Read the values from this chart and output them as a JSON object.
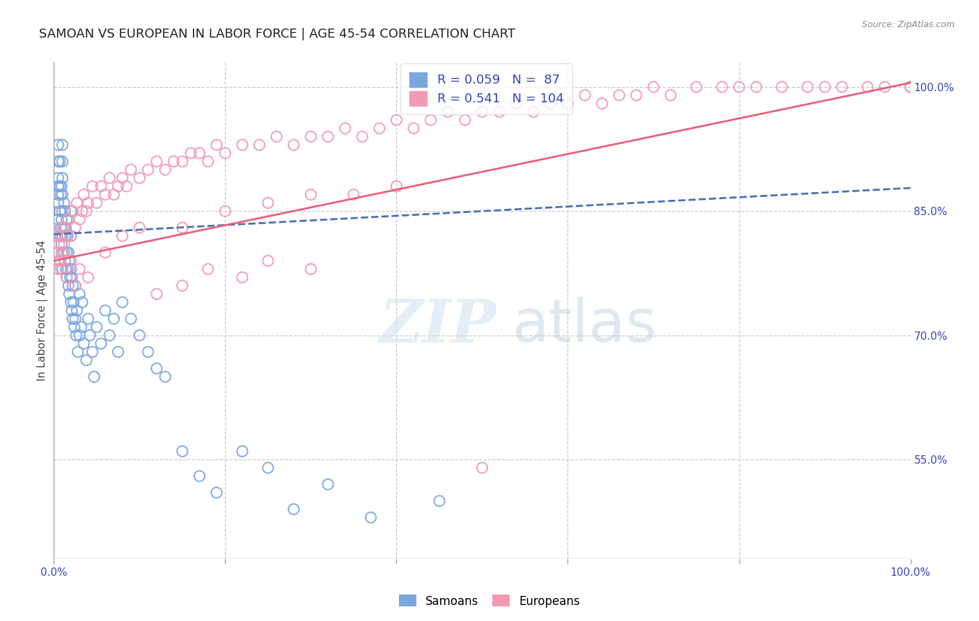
{
  "title": "SAMOAN VS EUROPEAN IN LABOR FORCE | AGE 45-54 CORRELATION CHART",
  "source": "Source: ZipAtlas.com",
  "ylabel": "In Labor Force | Age 45-54",
  "y_tick_labels": [
    "55.0%",
    "70.0%",
    "85.0%",
    "100.0%"
  ],
  "y_tick_values": [
    0.55,
    0.7,
    0.85,
    1.0
  ],
  "ylim": [
    0.43,
    1.03
  ],
  "xlim": [
    0.0,
    1.0
  ],
  "samoan_R": 0.059,
  "samoan_N": 87,
  "european_R": 0.541,
  "european_N": 104,
  "samoan_color": "#7ba7e0",
  "european_color": "#f299b4",
  "samoan_line_color": "#4a6fb5",
  "european_line_color": "#e8607a",
  "legend_samoan_label": "Samoans",
  "legend_european_label": "Europeans",
  "watermark_zip": "ZIP",
  "watermark_atlas": "atlas",
  "background_color": "#ffffff",
  "title_fontsize": 13,
  "axis_label_fontsize": 11,
  "tick_label_fontsize": 11,
  "samoan_x": [
    0.005,
    0.005,
    0.005,
    0.005,
    0.005,
    0.005,
    0.005,
    0.007,
    0.007,
    0.007,
    0.007,
    0.008,
    0.008,
    0.009,
    0.009,
    0.009,
    0.01,
    0.01,
    0.01,
    0.01,
    0.01,
    0.01,
    0.01,
    0.012,
    0.012,
    0.012,
    0.013,
    0.013,
    0.013,
    0.014,
    0.014,
    0.015,
    0.015,
    0.015,
    0.016,
    0.016,
    0.017,
    0.017,
    0.018,
    0.018,
    0.019,
    0.02,
    0.02,
    0.02,
    0.02,
    0.021,
    0.021,
    0.022,
    0.022,
    0.023,
    0.024,
    0.025,
    0.025,
    0.026,
    0.027,
    0.028,
    0.03,
    0.03,
    0.032,
    0.033,
    0.035,
    0.038,
    0.04,
    0.042,
    0.045,
    0.047,
    0.05,
    0.055,
    0.06,
    0.065,
    0.07,
    0.075,
    0.08,
    0.09,
    0.1,
    0.11,
    0.12,
    0.13,
    0.15,
    0.17,
    0.19,
    0.22,
    0.25,
    0.28,
    0.32,
    0.37,
    0.45
  ],
  "samoan_y": [
    0.84,
    0.86,
    0.87,
    0.88,
    0.89,
    0.91,
    0.93,
    0.82,
    0.85,
    0.88,
    0.91,
    0.83,
    0.87,
    0.81,
    0.84,
    0.88,
    0.78,
    0.82,
    0.85,
    0.87,
    0.89,
    0.91,
    0.93,
    0.8,
    0.83,
    0.86,
    0.79,
    0.82,
    0.85,
    0.78,
    0.83,
    0.77,
    0.8,
    0.84,
    0.78,
    0.82,
    0.76,
    0.8,
    0.75,
    0.79,
    0.77,
    0.74,
    0.78,
    0.82,
    0.85,
    0.73,
    0.77,
    0.72,
    0.76,
    0.74,
    0.71,
    0.72,
    0.76,
    0.7,
    0.73,
    0.68,
    0.7,
    0.75,
    0.71,
    0.74,
    0.69,
    0.67,
    0.72,
    0.7,
    0.68,
    0.65,
    0.71,
    0.69,
    0.73,
    0.7,
    0.72,
    0.68,
    0.74,
    0.72,
    0.7,
    0.68,
    0.66,
    0.65,
    0.56,
    0.53,
    0.51,
    0.56,
    0.54,
    0.49,
    0.52,
    0.48,
    0.5
  ],
  "european_x": [
    0.003,
    0.004,
    0.005,
    0.006,
    0.007,
    0.008,
    0.009,
    0.01,
    0.012,
    0.013,
    0.015,
    0.017,
    0.02,
    0.022,
    0.025,
    0.027,
    0.03,
    0.033,
    0.035,
    0.038,
    0.04,
    0.045,
    0.05,
    0.055,
    0.06,
    0.065,
    0.07,
    0.075,
    0.08,
    0.085,
    0.09,
    0.1,
    0.11,
    0.12,
    0.13,
    0.14,
    0.15,
    0.16,
    0.17,
    0.18,
    0.19,
    0.2,
    0.22,
    0.24,
    0.26,
    0.28,
    0.3,
    0.32,
    0.34,
    0.36,
    0.38,
    0.4,
    0.42,
    0.44,
    0.46,
    0.48,
    0.5,
    0.52,
    0.54,
    0.56,
    0.58,
    0.6,
    0.62,
    0.64,
    0.66,
    0.68,
    0.7,
    0.72,
    0.75,
    0.78,
    0.8,
    0.82,
    0.85,
    0.88,
    0.9,
    0.92,
    0.95,
    0.97,
    1.0,
    1.0,
    0.005,
    0.008,
    0.01,
    0.015,
    0.02,
    0.025,
    0.03,
    0.04,
    0.06,
    0.08,
    0.1,
    0.15,
    0.2,
    0.25,
    0.3,
    0.35,
    0.4,
    0.3,
    0.25,
    0.22,
    0.18,
    0.15,
    0.12,
    0.5
  ],
  "european_y": [
    0.82,
    0.8,
    0.78,
    0.81,
    0.79,
    0.82,
    0.8,
    0.83,
    0.81,
    0.83,
    0.82,
    0.84,
    0.82,
    0.85,
    0.83,
    0.86,
    0.84,
    0.85,
    0.87,
    0.85,
    0.86,
    0.88,
    0.86,
    0.88,
    0.87,
    0.89,
    0.87,
    0.88,
    0.89,
    0.88,
    0.9,
    0.89,
    0.9,
    0.91,
    0.9,
    0.91,
    0.91,
    0.92,
    0.92,
    0.91,
    0.93,
    0.92,
    0.93,
    0.93,
    0.94,
    0.93,
    0.94,
    0.94,
    0.95,
    0.94,
    0.95,
    0.96,
    0.95,
    0.96,
    0.97,
    0.96,
    0.97,
    0.97,
    0.98,
    0.97,
    0.98,
    0.98,
    0.99,
    0.98,
    0.99,
    0.99,
    1.0,
    0.99,
    1.0,
    1.0,
    1.0,
    1.0,
    1.0,
    1.0,
    1.0,
    1.0,
    1.0,
    1.0,
    1.0,
    1.0,
    0.79,
    0.78,
    0.8,
    0.77,
    0.79,
    0.76,
    0.78,
    0.77,
    0.8,
    0.82,
    0.83,
    0.83,
    0.85,
    0.86,
    0.87,
    0.87,
    0.88,
    0.78,
    0.79,
    0.77,
    0.78,
    0.76,
    0.75,
    0.54
  ]
}
